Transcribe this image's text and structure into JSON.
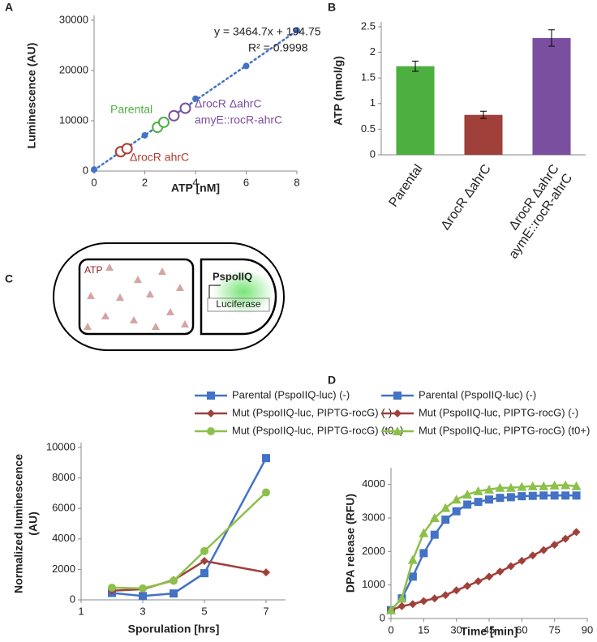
{
  "chart_data": [
    {
      "type": "scatter",
      "panel_label": "A",
      "xlabel": "ATP [nM]",
      "ylabel": "Luminescence (AU)",
      "xlim": [
        0,
        8
      ],
      "xticks": [
        0,
        2,
        4,
        6,
        8
      ],
      "ylim": [
        0,
        30000
      ],
      "yticks": [
        0,
        10000,
        20000,
        30000
      ],
      "trendline": {
        "slope": 3464.7,
        "intercept": 194.75,
        "color": "#4472c4"
      },
      "annotations": [
        "y = 3464.7x + 194.75",
        "R² = 0.9998",
        "Parental",
        "ΔrocR ΔahrC",
        "amyE::rocR-ahrC",
        "ΔrocR ahrC"
      ],
      "series": [
        {
          "color": "#4472c4",
          "marker": "dot",
          "x": [
            0,
            1,
            2,
            4,
            6,
            8
          ],
          "values": [
            300,
            3800,
            7100,
            14400,
            20900,
            28000
          ]
        },
        {
          "color": "#b03a2e",
          "marker": "ring",
          "x": [
            1.05,
            1.3
          ],
          "values": [
            3850,
            4450
          ]
        },
        {
          "color": "#4daf3f",
          "marker": "ring",
          "x": [
            2.5,
            2.75
          ],
          "values": [
            8700,
            9700
          ]
        },
        {
          "color": "#7b4fa0",
          "marker": "ring",
          "x": [
            3.15,
            3.6
          ],
          "values": [
            11000,
            12500
          ]
        }
      ]
    },
    {
      "type": "bar",
      "panel_label": "B",
      "ylabel": "ATP (nmol/g)",
      "ylim": [
        0,
        2.5
      ],
      "yticks": [
        0,
        0.5,
        1,
        1.5,
        2,
        2.5
      ],
      "categories": [
        [
          "Parental"
        ],
        [
          "ΔrocR ΔahrC"
        ],
        [
          "ΔrocR ΔahrC",
          "aymE::rocR-ahrC"
        ]
      ],
      "values": [
        1.73,
        0.78,
        2.28
      ],
      "errors": [
        0.1,
        0.07,
        0.16
      ],
      "colors": [
        "#4daf3f",
        "#a0403a",
        "#7b4fa0"
      ]
    },
    {
      "type": "line",
      "panel_label": "C",
      "xlabel": "Sporulation [hrs]",
      "ylabel": [
        "Normalized luminescence",
        "(AU)"
      ],
      "xlim": [
        1,
        7
      ],
      "xticks": [
        1,
        3,
        5,
        7
      ],
      "ylim": [
        0,
        10000
      ],
      "yticks": [
        0,
        2000,
        4000,
        6000,
        8000,
        10000
      ],
      "x": [
        2,
        3,
        4,
        5,
        7
      ],
      "series": [
        {
          "name": "Parental (PspoIIQ-luc) (-)",
          "color": "#4472c4",
          "marker": "square",
          "values": [
            450,
            250,
            420,
            1750,
            9300
          ]
        },
        {
          "name": "Mut (PspoIIQ-luc, PIPTG-rocG) (-)",
          "color": "#a0403a",
          "marker": "diamond",
          "values": [
            600,
            700,
            1300,
            2550,
            1800
          ]
        },
        {
          "name": "Mut (PspoIIQ-luc, PIPTG-rocG) (t0+)",
          "color": "#8dc04a",
          "marker": "circle",
          "values": [
            800,
            750,
            1250,
            3200,
            7050
          ]
        }
      ]
    },
    {
      "type": "line",
      "panel_label": "D",
      "xlabel": "Time [min]",
      "ylabel": [
        "DPA release (RFU)"
      ],
      "xlim": [
        0,
        90
      ],
      "xticks": [
        0,
        15,
        30,
        45,
        60,
        75,
        90
      ],
      "ylim": [
        0,
        4500
      ],
      "yticks": [
        0,
        1000,
        2000,
        3000,
        4000
      ],
      "x": [
        0,
        5,
        10,
        15,
        20,
        25,
        30,
        35,
        40,
        45,
        50,
        55,
        60,
        65,
        70,
        75,
        80,
        85
      ],
      "series": [
        {
          "name": "Parental (PspoIIQ-luc) (-)",
          "color": "#4472c4",
          "marker": "square",
          "values": [
            250,
            600,
            1250,
            1950,
            2500,
            2950,
            3200,
            3400,
            3480,
            3550,
            3600,
            3620,
            3650,
            3660,
            3670,
            3670,
            3670,
            3670
          ]
        },
        {
          "name": "Mut (PspoIIQ-luc, PIPTG-rocG) (-)",
          "color": "#a0403a",
          "marker": "diamond",
          "values": [
            250,
            370,
            430,
            520,
            600,
            700,
            840,
            970,
            1110,
            1250,
            1400,
            1560,
            1720,
            1880,
            2040,
            2200,
            2380,
            2580
          ]
        },
        {
          "name": "Mut (PspoIIQ-luc, PIPTG-rocG) (t0+)",
          "color": "#8dc04a",
          "marker": "triangle",
          "values": [
            250,
            600,
            1750,
            2550,
            3000,
            3300,
            3550,
            3700,
            3800,
            3850,
            3900,
            3900,
            3930,
            3950,
            3950,
            3970,
            3980,
            3950
          ]
        }
      ]
    }
  ],
  "diagram": {
    "atp": "ATP",
    "promoter": "PspoIIQ",
    "reporter": "Luciferase"
  }
}
